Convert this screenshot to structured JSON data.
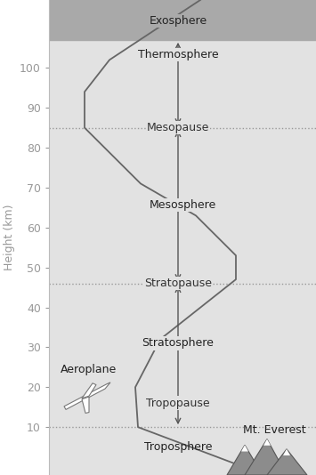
{
  "chart_data": {
    "type": "line",
    "y_label": "Height (km)",
    "x": [
      262,
      155,
      152,
      180,
      265,
      265,
      220,
      158,
      95,
      95,
      123,
      225
    ],
    "values": [
      1,
      10,
      20,
      32,
      47,
      53,
      63,
      71,
      85,
      94,
      102,
      117
    ],
    "xlim": [
      55,
      355
    ],
    "ylim": [
      -2,
      117
    ],
    "yticks": [
      10,
      20,
      30,
      40,
      50,
      60,
      70,
      80,
      90,
      100
    ],
    "tick_labels": "y",
    "color": "#666666",
    "boundaries": [
      {
        "label": "Tropopause",
        "value": 10
      },
      {
        "label": "Stratopause",
        "value": 46
      },
      {
        "label": "Mesopause",
        "value": 85
      }
    ],
    "shaded_from": 107,
    "annotations": [
      "Exosphere",
      "Thermosphere",
      "Mesosphere",
      "Stratosphere",
      "Troposphere",
      "Aeroplane",
      "Mt. Everest"
    ]
  }
}
